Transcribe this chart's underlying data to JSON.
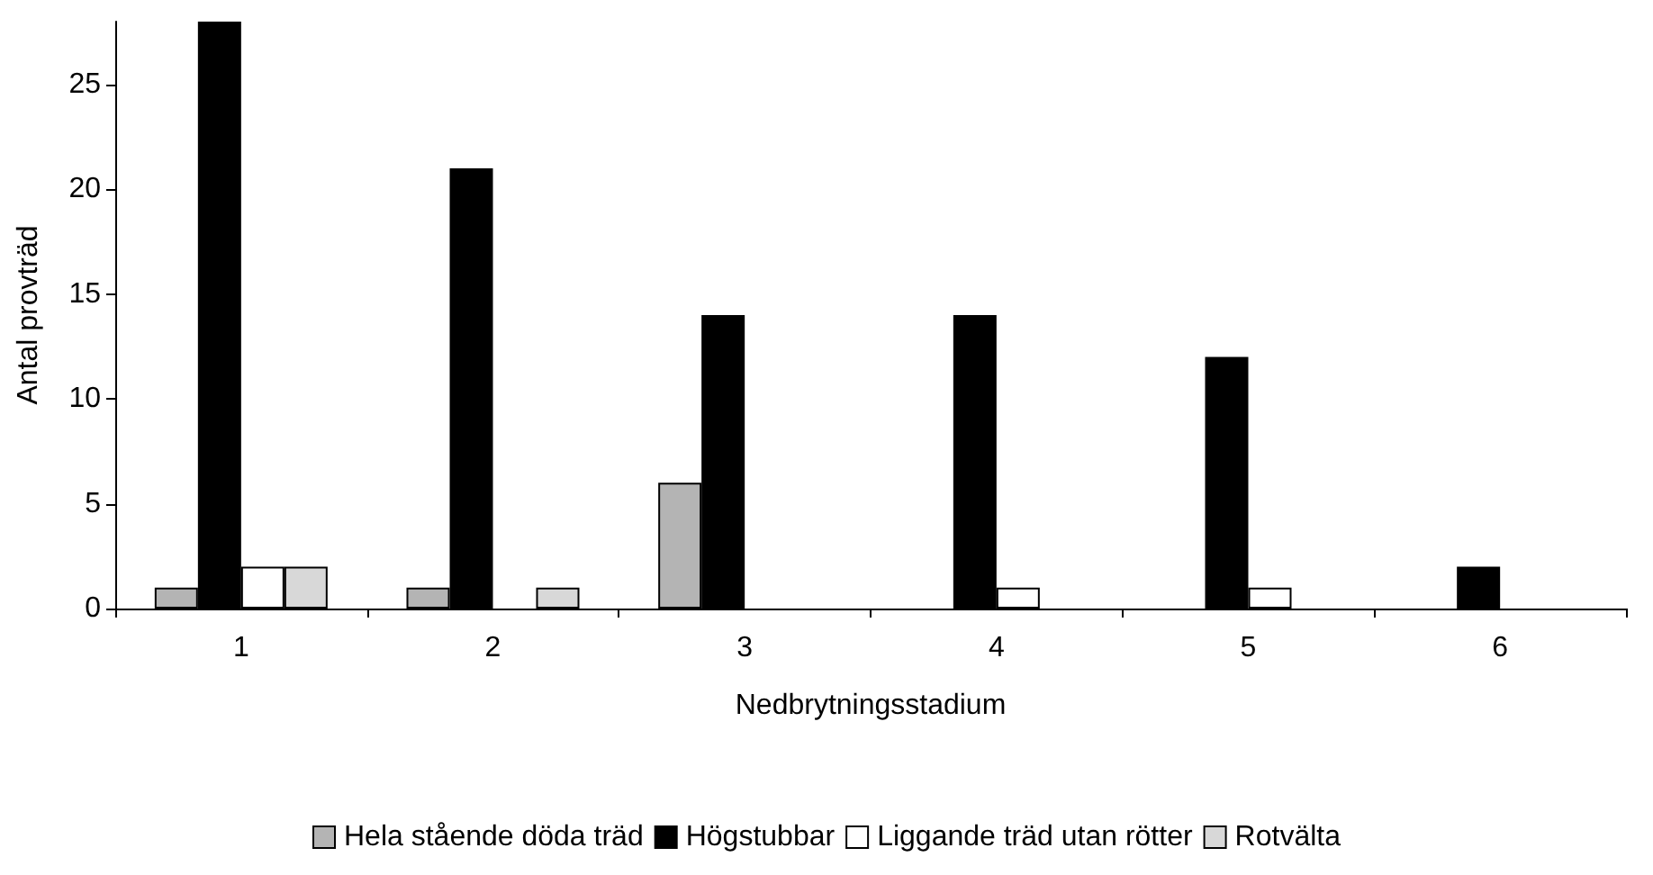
{
  "chart_data": {
    "type": "bar",
    "xlabel": "Nedbrytningsstadium",
    "ylabel": "Antal provträd",
    "categories": [
      "1",
      "2",
      "3",
      "4",
      "5",
      "6"
    ],
    "series": [
      {
        "name": "Hela stående döda träd",
        "color": "#b4b4b4",
        "values": [
          1,
          1,
          6,
          0,
          0,
          0
        ]
      },
      {
        "name": "Högstubbar",
        "color": "#000000",
        "values": [
          28,
          21,
          14,
          14,
          12,
          2
        ]
      },
      {
        "name": "Liggande träd utan rötter",
        "color": "#ffffff",
        "values": [
          2,
          0,
          0,
          1,
          1,
          0
        ]
      },
      {
        "name": "Rotvälta",
        "color": "#d8d8d8",
        "values": [
          2,
          1,
          0,
          0,
          0,
          0
        ]
      }
    ],
    "ylim": [
      0,
      28
    ],
    "yticks": [
      0,
      5,
      10,
      15,
      20,
      25
    ],
    "grid": false,
    "legend": "bottom"
  }
}
